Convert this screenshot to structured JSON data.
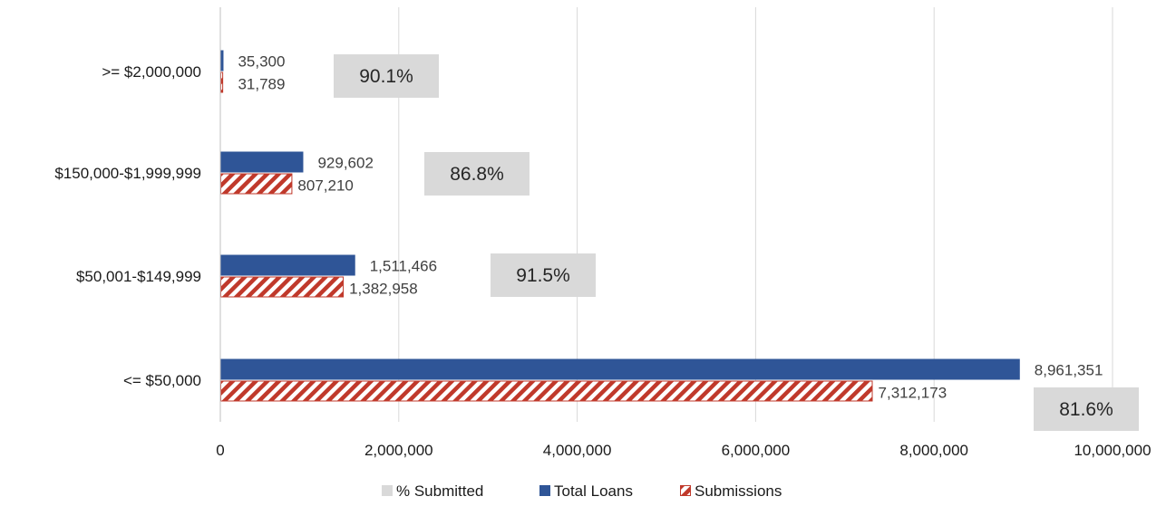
{
  "chart_data": {
    "type": "bar",
    "orientation": "horizontal",
    "categories": [
      ">= $2,000,000",
      "$150,000-$1,999,999",
      "$50,001-$149,999",
      "<= $50,000"
    ],
    "series": [
      {
        "name": "Total Loans",
        "values": [
          35300,
          929602,
          1511466,
          8961351
        ],
        "labels": [
          "35,300",
          "929,602",
          "1,511,466",
          "8,961,351"
        ],
        "color": "#2f5597"
      },
      {
        "name": "Submissions",
        "values": [
          31789,
          807210,
          1382958,
          7312173
        ],
        "labels": [
          "31,789",
          "807,210",
          "1,382,958",
          "7,312,173"
        ],
        "color": "#c0392b",
        "pattern": "diagonal-hatch"
      }
    ],
    "percent_submitted": {
      "name": "% Submitted",
      "values": [
        90.1,
        86.8,
        91.5,
        81.6
      ],
      "labels": [
        "90.1%",
        "86.8%",
        "91.5%",
        "81.6%"
      ],
      "color": "#d9d9d9"
    },
    "xlim": [
      0,
      10000000
    ],
    "x_ticks": [
      0,
      2000000,
      4000000,
      6000000,
      8000000,
      10000000
    ],
    "x_tick_labels": [
      "0",
      "2,000,000",
      "4,000,000",
      "6,000,000",
      "8,000,000",
      "10,000,000"
    ],
    "grid": "vertical",
    "legend": {
      "position": "bottom",
      "items": [
        "% Submitted",
        "Total Loans",
        "Submissions"
      ]
    },
    "title": "",
    "xlabel": "",
    "ylabel": ""
  }
}
